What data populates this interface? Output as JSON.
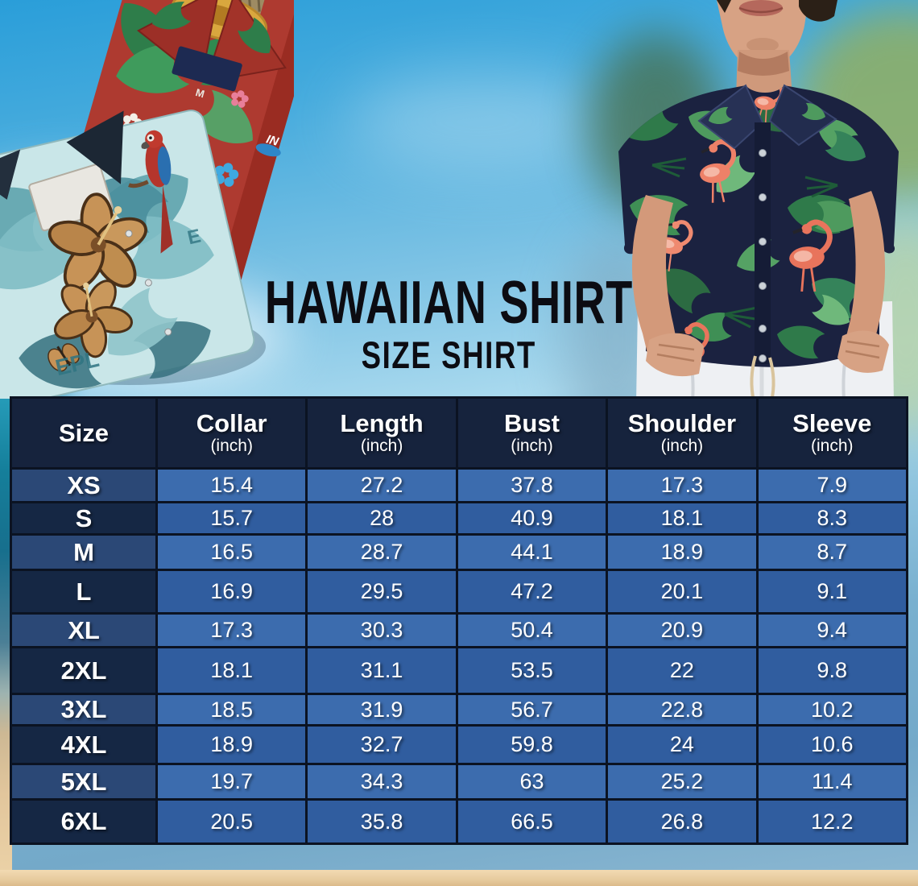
{
  "chart_data": {
    "type": "table",
    "title": "HAWAIIAN SHIRT",
    "subtitle": "SIZE SHIRT",
    "size_column_label": "Size",
    "unit_label": "(inch)",
    "measure_columns": [
      "Collar",
      "Length",
      "Bust",
      "Shoulder",
      "Sleeve"
    ],
    "rows": [
      {
        "size": "XS",
        "values": [
          "15.4",
          "27.2",
          "37.8",
          "17.3",
          "7.9"
        ]
      },
      {
        "size": "S",
        "values": [
          "15.7",
          "28",
          "40.9",
          "18.1",
          "8.3"
        ]
      },
      {
        "size": "M",
        "values": [
          "16.5",
          "28.7",
          "44.1",
          "18.9",
          "8.7"
        ]
      },
      {
        "size": "L",
        "values": [
          "16.9",
          "29.5",
          "47.2",
          "20.1",
          "9.1"
        ]
      },
      {
        "size": "XL",
        "values": [
          "17.3",
          "30.3",
          "50.4",
          "20.9",
          "9.4"
        ]
      },
      {
        "size": "2XL",
        "values": [
          "18.1",
          "31.1",
          "53.5",
          "22",
          "9.8"
        ]
      },
      {
        "size": "3XL",
        "values": [
          "18.5",
          "31.9",
          "56.7",
          "22.8",
          "10.2"
        ]
      },
      {
        "size": "4XL",
        "values": [
          "18.9",
          "32.7",
          "59.8",
          "24",
          "10.6"
        ]
      },
      {
        "size": "5XL",
        "values": [
          "19.7",
          "34.3",
          "63",
          "25.2",
          "11.4"
        ]
      },
      {
        "size": "6XL",
        "values": [
          "20.5",
          "35.8",
          "66.5",
          "26.8",
          "12.2"
        ]
      }
    ]
  },
  "decor": {
    "teal_shirt_print_text": "EPL",
    "teal_shirt_print_text_partial": "E",
    "red_shirt_size_tag": "M",
    "red_shirt_sleeve_logo": "IN"
  },
  "colors": {
    "header_bg": "#16233d",
    "size_cell_odd": "#2b4876",
    "size_cell_even": "#152744",
    "value_cell_odd": "#3c6cae",
    "value_cell_even": "#305d9f",
    "table_border": "#0b1322",
    "title_text": "#0c0c12",
    "sand": "#e9cfa4",
    "sky_top": "#2a9ed9"
  }
}
